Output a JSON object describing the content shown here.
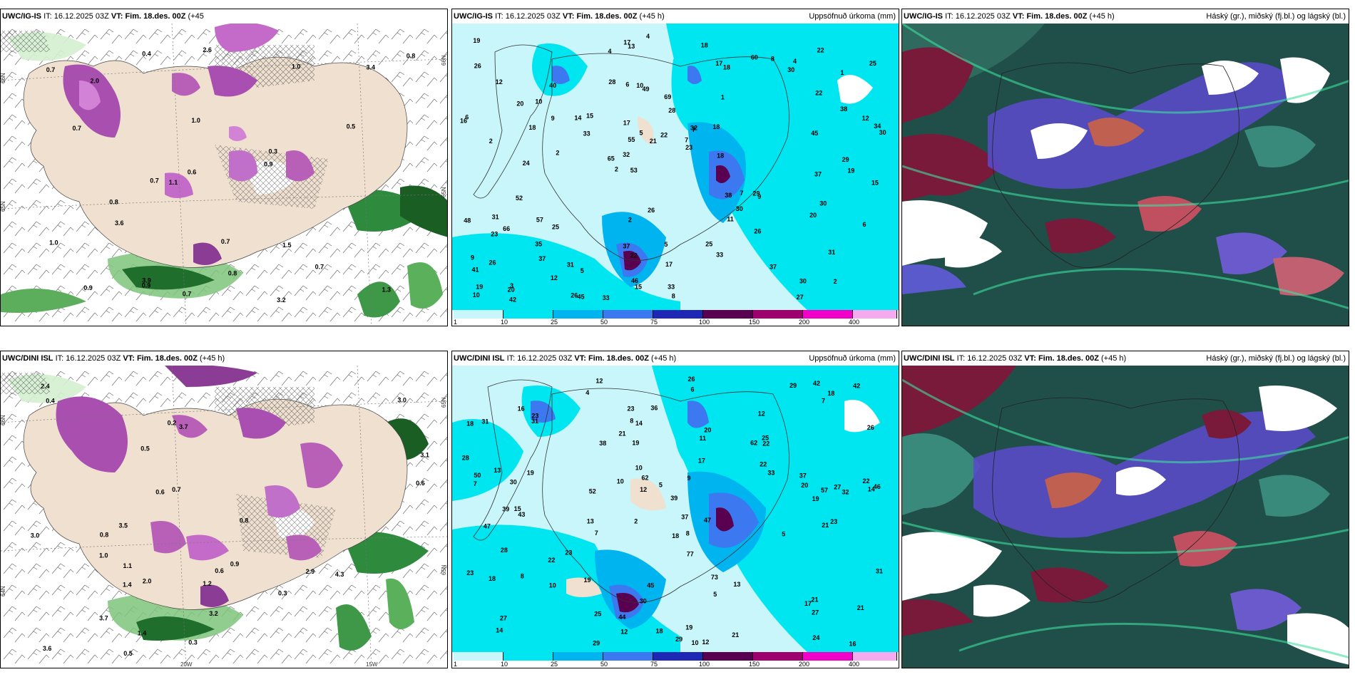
{
  "panels": [
    {
      "model": "UWC/IG-IS",
      "it_label": "IT:",
      "it_value": "16.12.2025 03Z",
      "vt_label": "VT:",
      "vt_value": "Fim. 18.des. 00Z",
      "lead": "(+45",
      "lead2": "h)",
      "right_title": "",
      "kind": "wind-snow"
    },
    {
      "model": "UWC/IG-IS",
      "it_label": "IT:",
      "it_value": "16.12.2025 03Z",
      "vt_label": "VT:",
      "vt_value": "Fim. 18.des. 00Z",
      "lead": "(+45 h)",
      "right_title": "Uppsöfnuð úrkoma (mm)",
      "kind": "precip"
    },
    {
      "model": "UWC/IG-IS",
      "it_label": "IT:",
      "it_value": "16.12.2025 03Z",
      "vt_label": "VT:",
      "vt_value": "Fim. 18.des. 00Z",
      "lead": "(+45 h)",
      "right_title": "Háský (gr.), miðský (fj.bl.) og lágský (bl.)",
      "kind": "cloud"
    },
    {
      "model": "UWC/DINI ISL",
      "it_label": "IT:",
      "it_value": "16.12.2025 03Z",
      "vt_label": "VT:",
      "vt_value": "Fim. 18.des. 00Z",
      "lead": "(+45 h)",
      "right_title": "",
      "kind": "wind-snow"
    },
    {
      "model": "UWC/DINI ISL",
      "it_label": "IT:",
      "it_value": "16.12.2025 03Z",
      "vt_label": "VT:",
      "vt_value": "Fim. 18.des. 00Z",
      "lead": "(+45 h)",
      "right_title": "Uppsöfnuð úrkoma (mm)",
      "kind": "precip"
    },
    {
      "model": "UWC/DINI ISL",
      "it_label": "IT:",
      "it_value": "16.12.2025 03Z",
      "vt_label": "VT:",
      "vt_value": "Fim. 18.des. 00Z",
      "lead": "(+45 h)",
      "right_title": "Háský (gr.), miðský (fj.bl.) og lágský (bl.)",
      "kind": "cloud"
    }
  ],
  "precip_legend": {
    "ticks": [
      "1",
      "10",
      "25",
      "50",
      "75",
      "100",
      "150",
      "200",
      "400"
    ],
    "colors": [
      "#c8f6fa",
      "#00e6f0",
      "#00b4f0",
      "#3c78f0",
      "#1e28b4",
      "#5a0050",
      "#a0006e",
      "#f000c8",
      "#f5aaf0"
    ]
  },
  "grid_labels": {
    "lat_66": "66N",
    "lat_64": "64N",
    "lat_65": "65N",
    "lon_20w": "20W",
    "lon_15w": "15W"
  },
  "top_precip_values": [
    "2",
    "2",
    "1",
    "2",
    "1",
    "3",
    "6",
    "28",
    "66",
    "15",
    "41",
    "37",
    "10",
    "7",
    "9",
    "12",
    "13",
    "30",
    "38",
    "38",
    "32",
    "37",
    "55",
    "40",
    "60",
    "25",
    "30",
    "31",
    "29",
    "8",
    "14",
    "18",
    "11",
    "12",
    "12",
    "7",
    "19",
    "22",
    "23",
    "23",
    "22",
    "25",
    "30",
    "33",
    "35",
    "42",
    "10",
    "5",
    "4",
    "4",
    "2",
    "6",
    "10",
    "8",
    "20",
    "18",
    "4",
    "5",
    "6",
    "2",
    "5",
    "7",
    "9",
    "9",
    "19",
    "20",
    "15",
    "17",
    "17",
    "22",
    "26",
    "18",
    "30",
    "46",
    "45",
    "26",
    "37",
    "33",
    "25",
    "17",
    "19",
    "18",
    "26",
    "21",
    "20",
    "16",
    "15",
    "17",
    "18",
    "24",
    "26",
    "29",
    "34",
    "52",
    "57",
    "31",
    "32",
    "30",
    "33",
    "37",
    "26",
    "49",
    "65",
    "45",
    "48",
    "53",
    "22",
    "28",
    "33",
    "31",
    "27",
    "69"
  ],
  "bottom_precip_values": [
    "12",
    "12",
    "14",
    "2",
    "8",
    "15",
    "31",
    "62",
    "47",
    "11",
    "39",
    "14",
    "4",
    "13",
    "10",
    "12",
    "30",
    "29",
    "33",
    "22",
    "30",
    "39",
    "46",
    "27",
    "23",
    "13",
    "12",
    "20",
    "21",
    "18",
    "17",
    "20",
    "8",
    "10",
    "13",
    "31",
    "37",
    "44",
    "42",
    "36",
    "27",
    "29",
    "21",
    "16",
    "18",
    "22",
    "27",
    "25",
    "28",
    "37",
    "8",
    "19",
    "9",
    "7",
    "6",
    "10",
    "10",
    "5",
    "18",
    "19",
    "21",
    "21",
    "23",
    "19",
    "18",
    "50",
    "57",
    "43",
    "38",
    "26",
    "28",
    "23",
    "22",
    "22",
    "17",
    "19",
    "25",
    "31",
    "32",
    "23",
    "26",
    "19",
    "24",
    "18",
    "21",
    "14",
    "16",
    "5",
    "7",
    "5",
    "7",
    "23",
    "12",
    "29",
    "62",
    "73",
    "77",
    "52",
    "47",
    "45",
    "42"
  ],
  "top_snow_values": [
    "0.7",
    "3.2",
    "3.9",
    "0.7",
    "0.4",
    "2.0",
    "0.7",
    "1.3",
    "2.6",
    "1.0",
    "3.4",
    "0.8",
    "0.6",
    "0.7",
    "1.0",
    "0.9",
    "0.7",
    "0.9",
    "1.1",
    "0.7",
    "1.5",
    "0.8",
    "0.3",
    "0.9",
    "0.5",
    "0.8",
    "1.0",
    "3.6"
  ],
  "bottom_snow_values": [
    "0.4",
    "2.4",
    "3.0",
    "3.0",
    "3.1",
    "0.3",
    "3.7",
    "2.0",
    "3.6",
    "2.9",
    "1.4",
    "0.8",
    "0.5",
    "1.0",
    "0.6",
    "0.6",
    "1.2",
    "3.7",
    "0.5",
    "0.7",
    "0.6",
    "3.2",
    "1.4",
    "3.5",
    "0.8",
    "0.9",
    "1.1",
    "4.3",
    "0.3",
    "0.2"
  ]
}
